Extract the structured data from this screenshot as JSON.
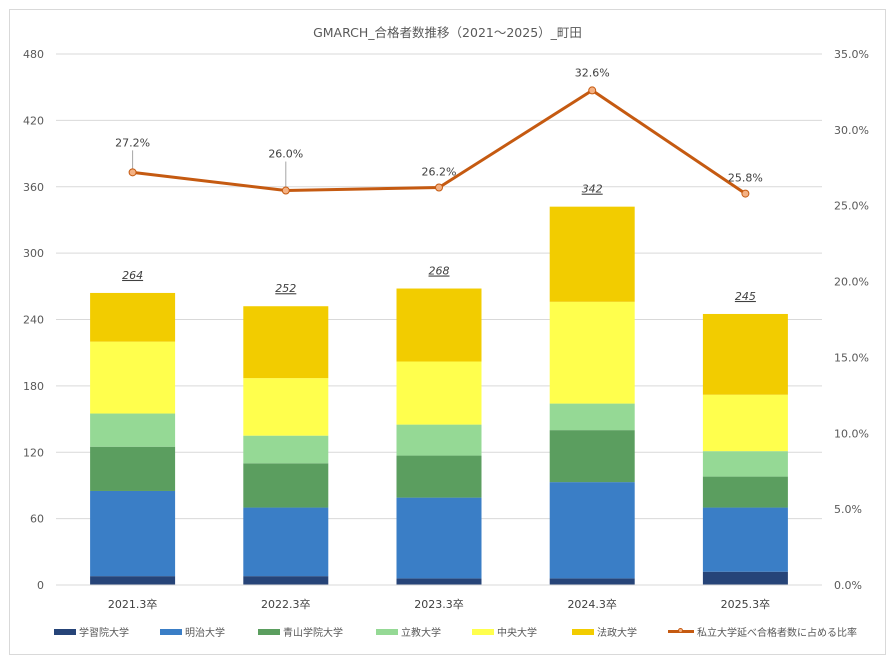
{
  "chart_data": {
    "type": "bar",
    "stacked": true,
    "title": "GMARCH_合格者数推移（2021～2025）_町田",
    "categories": [
      "2021.3卒",
      "2022.3卒",
      "2023.3卒",
      "2024.3卒",
      "2025.3卒"
    ],
    "series": [
      {
        "name": "学習院大学",
        "color": "#264478",
        "values": [
          8,
          8,
          6,
          6,
          12
        ]
      },
      {
        "name": "明治大学",
        "color": "#3a7ec6",
        "values": [
          77,
          62,
          73,
          87,
          58
        ]
      },
      {
        "name": "青山学院大学",
        "color": "#5b9e5f",
        "values": [
          40,
          40,
          38,
          47,
          28
        ]
      },
      {
        "name": "立教大学",
        "color": "#95d995",
        "values": [
          30,
          25,
          28,
          24,
          23
        ]
      },
      {
        "name": "中央大学",
        "color": "#ffff4d",
        "values": [
          65,
          52,
          57,
          92,
          51
        ]
      },
      {
        "name": "法政大学",
        "color": "#f2cc00",
        "values": [
          44,
          65,
          66,
          86,
          73
        ]
      }
    ],
    "totals": [
      264,
      252,
      268,
      342,
      245
    ],
    "total_labels": [
      "264",
      "252",
      "268",
      "342",
      "245"
    ],
    "line_series": {
      "name": "私立大学延べ合格者数に占める比率",
      "color": "#c55a11",
      "marker_fill": "#f4b183",
      "values": [
        27.2,
        26.0,
        26.2,
        32.6,
        25.8
      ],
      "labels": [
        "27.2%",
        "26.0%",
        "26.2%",
        "32.6%",
        "25.8%"
      ]
    },
    "y_left": {
      "min": 0,
      "max": 480,
      "step": 60,
      "ticks": [
        "0",
        "60",
        "120",
        "180",
        "240",
        "300",
        "360",
        "420",
        "480"
      ]
    },
    "y_right": {
      "min": 0,
      "max": 35,
      "step": 5,
      "ticks": [
        "0.0%",
        "5.0%",
        "10.0%",
        "15.0%",
        "20.0%",
        "25.0%",
        "30.0%",
        "35.0%"
      ]
    },
    "grid": true,
    "legend_position": "bottom"
  }
}
